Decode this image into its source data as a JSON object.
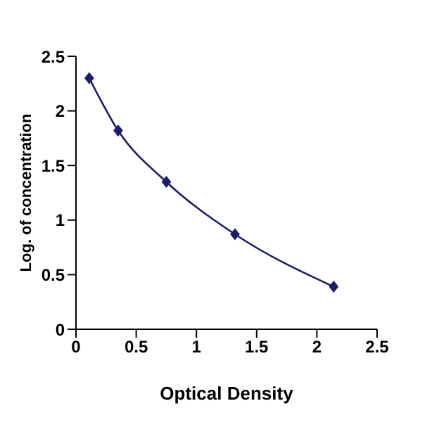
{
  "chart_data": {
    "type": "line",
    "xlabel": "Optical Density",
    "ylabel": "Log. of concentration",
    "x": [
      0.11,
      0.35,
      0.75,
      1.32,
      2.14
    ],
    "series": [
      {
        "color": "#1c1c6e",
        "values": [
          2.3,
          1.82,
          1.35,
          0.87,
          0.39
        ]
      }
    ],
    "xlim": [
      0,
      2.5
    ],
    "xticks": [
      0,
      0.5,
      1,
      1.5,
      2,
      2.5
    ],
    "ylim": [
      0,
      2.5
    ],
    "yticks": [
      0,
      0.5,
      1,
      1.5,
      2,
      2.5
    ],
    "grid": false,
    "legend": false,
    "marker": "diamond",
    "line_style": "solid"
  }
}
